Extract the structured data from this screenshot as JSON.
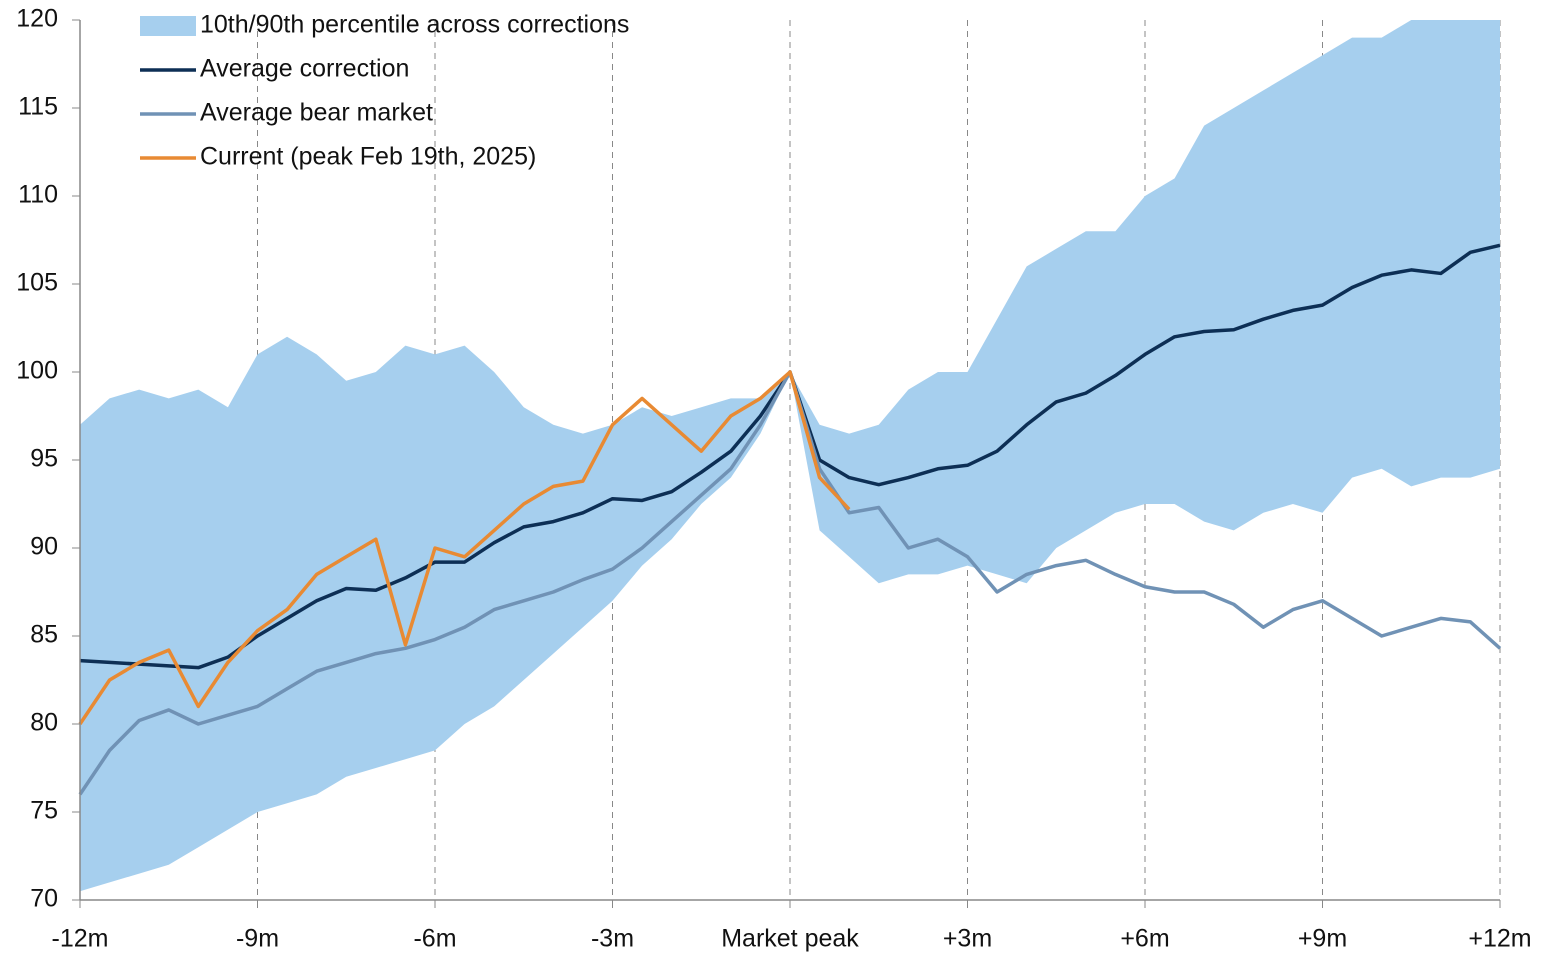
{
  "chart_data": {
    "type": "line",
    "x": [
      -12,
      -11.5,
      -11,
      -10.5,
      -10,
      -9.5,
      -9,
      -8.5,
      -8,
      -7.5,
      -7,
      -6.5,
      -6,
      -5.5,
      -5,
      -4.5,
      -4,
      -3.5,
      -3,
      -2.5,
      -2,
      -1.5,
      -1,
      -0.5,
      0,
      0.5,
      1,
      1.5,
      2,
      2.5,
      3,
      3.5,
      4,
      4.5,
      5,
      5.5,
      6,
      6.5,
      7,
      7.5,
      8,
      8.5,
      9,
      9.5,
      10,
      10.5,
      11,
      11.5,
      12
    ],
    "series": [
      {
        "name": "10th/90th percentile across corrections",
        "type": "band",
        "color": "#a6cfee",
        "upper": [
          97,
          98.5,
          99,
          98.5,
          99,
          98,
          101,
          102,
          101,
          99.5,
          100,
          101.5,
          101,
          101.5,
          100,
          98,
          97,
          96.5,
          97,
          98,
          97.5,
          98,
          98.5,
          98.5,
          100,
          97,
          96.5,
          97,
          99,
          100,
          100,
          103,
          106,
          107,
          108,
          108,
          110,
          111,
          114,
          115,
          116,
          117,
          118,
          119,
          119,
          120,
          120,
          120,
          120
        ],
        "lower": [
          70.5,
          71,
          71.5,
          72,
          73,
          74,
          75,
          75.5,
          76,
          77,
          77.5,
          78,
          78.5,
          80,
          81,
          82.5,
          84,
          85.5,
          87,
          89,
          90.5,
          92.5,
          94,
          96.5,
          100,
          91,
          89.5,
          88,
          88.5,
          88.5,
          89,
          88.5,
          88,
          90,
          91,
          92,
          92.5,
          92.5,
          91.5,
          91,
          92,
          92.5,
          92,
          94,
          94.5,
          93.5,
          94,
          94,
          94.5
        ]
      },
      {
        "name": "Average correction",
        "color": "#0d2f55",
        "values": [
          83.6,
          83.5,
          83.4,
          83.3,
          83.2,
          83.8,
          85,
          86,
          87,
          87.7,
          87.6,
          88.3,
          89.2,
          89.2,
          90.3,
          91.2,
          91.5,
          92,
          92.8,
          92.7,
          93.2,
          94.3,
          95.5,
          97.5,
          100,
          95,
          94,
          93.6,
          94,
          94.5,
          94.7,
          95.5,
          97,
          98.3,
          98.8,
          99.8,
          101,
          102,
          102.3,
          102.4,
          103,
          103.5,
          103.8,
          104.8,
          105.5,
          105.8,
          105.6,
          106.8,
          107.2
        ]
      },
      {
        "name": "Average bear market",
        "color": "#7092b5",
        "values": [
          76,
          78.5,
          80.2,
          80.8,
          80,
          80.5,
          81,
          82,
          83,
          83.5,
          84,
          84.3,
          84.8,
          85.5,
          86.5,
          87,
          87.5,
          88.2,
          88.8,
          90,
          91.5,
          93,
          94.5,
          97,
          100,
          94.5,
          92,
          92.3,
          90,
          90.5,
          89.5,
          87.5,
          88.5,
          89,
          89.3,
          88.5,
          87.8,
          87.5,
          87.5,
          86.8,
          85.5,
          86.5,
          87,
          86,
          85,
          85.5,
          86,
          85.8,
          84.3
        ]
      },
      {
        "name": "Current (peak Feb 19th, 2025)",
        "color": "#e88a33",
        "values": [
          80,
          82.5,
          83.5,
          84.2,
          81,
          83.5,
          85.3,
          86.5,
          88.5,
          89.5,
          90.5,
          84.5,
          90,
          89.5,
          91,
          92.5,
          93.5,
          93.8,
          97,
          98.5,
          97,
          95.5,
          97.5,
          98.5,
          100,
          94,
          92.2,
          null,
          null,
          null,
          null,
          null,
          null,
          null,
          null,
          null,
          null,
          null,
          null,
          null,
          null,
          null,
          null,
          null,
          null,
          null,
          null,
          null,
          null
        ]
      }
    ],
    "xlim": [
      -12,
      12
    ],
    "xticks": [
      {
        "value": -12,
        "label": "-12m"
      },
      {
        "value": -9,
        "label": "-9m"
      },
      {
        "value": -6,
        "label": "-6m"
      },
      {
        "value": -3,
        "label": "-3m"
      },
      {
        "value": 0,
        "label": "Market peak"
      },
      {
        "value": 3,
        "label": "+3m"
      },
      {
        "value": 6,
        "label": "+6m"
      },
      {
        "value": 9,
        "label": "+9m"
      },
      {
        "value": 12,
        "label": "+12m"
      }
    ],
    "ylim": [
      70,
      120
    ],
    "yticks": [
      70,
      75,
      80,
      85,
      90,
      95,
      100,
      105,
      110,
      115,
      120
    ],
    "grid": "x",
    "legend": "upper left"
  }
}
